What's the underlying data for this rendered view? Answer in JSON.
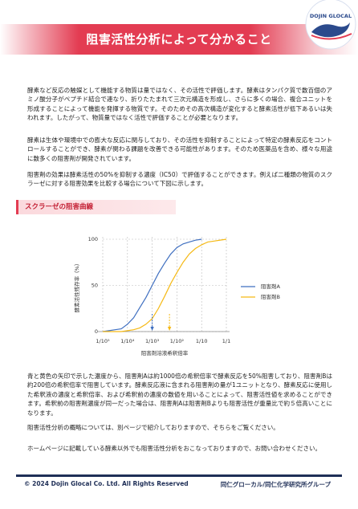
{
  "header": {
    "title": "阻害活性分析によって分かること",
    "logo": "DOJIN GLOCAL"
  },
  "paragraphs": [
    "酵素など反応の触媒として機能する物質は量ではなく、その活性で評価します。酵素はタンパク質で数百個のアミノ酸分子がペプチド結合で連なり、折りたたまれて三次元構造を形成し、さらに多くの場合、複合ユニットを形成することによって機能を発揮する物質です。そのためその高次構造が変化すると酵素活性が低下あるいは失われます。したがって、物質量ではなく活性で評価することが必要となります。",
    "酵素は生体や環境中での膨大な反応に関与しており、その活性を抑制することによって特定の酵素反応をコントロールすることができ、酵素が関わる課題を改善できる可能性があります。そのため医薬品を含め、様々な用途に数多くの阻害剤が開発されています。",
    "阻害剤の効果は酵素活性の50%を抑制する濃度（IC50）で評価することができます。例えば二種類の物質のスクラーゼに対する阻害効果を比較する場合について下図に示します。"
  ],
  "section_title": "スクラーゼの阻害曲線",
  "chart_data": {
    "type": "line",
    "x_label": "阻害剤溶液希釈倍率",
    "y_label": "酵素活性残存率（%）",
    "xscale": "log",
    "x": [
      1e-05,
      1.78e-05,
      3.16e-05,
      5.62e-05,
      0.0001,
      0.000178,
      0.000316,
      0.000562,
      0.001,
      0.00178,
      0.00316,
      0.00562,
      0.01,
      0.0178,
      0.0316,
      0.0562,
      0.1,
      0.178,
      0.316,
      0.562,
      1
    ],
    "series": [
      {
        "name": "阻害剤A",
        "color": "#3f6fc0",
        "values": [
          0,
          1,
          2,
          3,
          8,
          15,
          26,
          37,
          50,
          63,
          74,
          84,
          91,
          95,
          97,
          99,
          100,
          null,
          null,
          null,
          null
        ]
      },
      {
        "name": "阻害剤B",
        "color": "#f5b915",
        "values": [
          0,
          0,
          0,
          0,
          1,
          2,
          4,
          8,
          14,
          25,
          38,
          52,
          64,
          75,
          84,
          90,
          94,
          97,
          98,
          99,
          100
        ]
      }
    ],
    "arrows": [
      {
        "x": 0.001,
        "color": "#3f6fc0"
      },
      {
        "x": 0.005,
        "color": "#f5b915"
      }
    ],
    "xlim": [
      1e-05,
      1
    ],
    "ylim": [
      0,
      100
    ],
    "xticks": [
      {
        "value": 1e-05,
        "label": "1/10⁵"
      },
      {
        "value": 0.0001,
        "label": "1/10⁴"
      },
      {
        "value": 0.001,
        "label": "1/10³"
      },
      {
        "value": 0.01,
        "label": "1/10²"
      },
      {
        "value": 0.1,
        "label": "1/10"
      },
      {
        "value": 1,
        "label": "1/1"
      }
    ],
    "yticks": [
      0,
      50,
      100
    ],
    "grid": true,
    "legend": "right"
  },
  "paragraphs_after": [
    "青と黄色の矢印で示した濃度から、阻害剤Aは約1000倍の希釈倍率で酵素反応を50%阻害しており、阻害剤Bは約200倍の希釈倍率で阻害しています。酵素反応液に含まれる阻害剤の量が1ユニットとなり、酵素反応に使用した希釈液の濃度と希釈倍率、および希釈前の濃度の数値を用いることによって、阻害活性値を求めることができます。希釈前の阻害剤濃度が同一だった場合は、阻害剤Aは阻害剤Bよりも阻害活性が重量比で約５倍高いことになります。",
    "阻害活性分析の概略については、別ページで紹介しておりますので、そちらをご覧ください。",
    "ホームページに記載している酵素以外でも阻害活性分析をおこなっておりますので、お問い合わせください。"
  ],
  "footer": {
    "copyright": "© 2024 Dojin Glocal Co. Ltd. All Rights Reserved",
    "group": "同仁グローカル/同仁化学研究所グループ"
  }
}
